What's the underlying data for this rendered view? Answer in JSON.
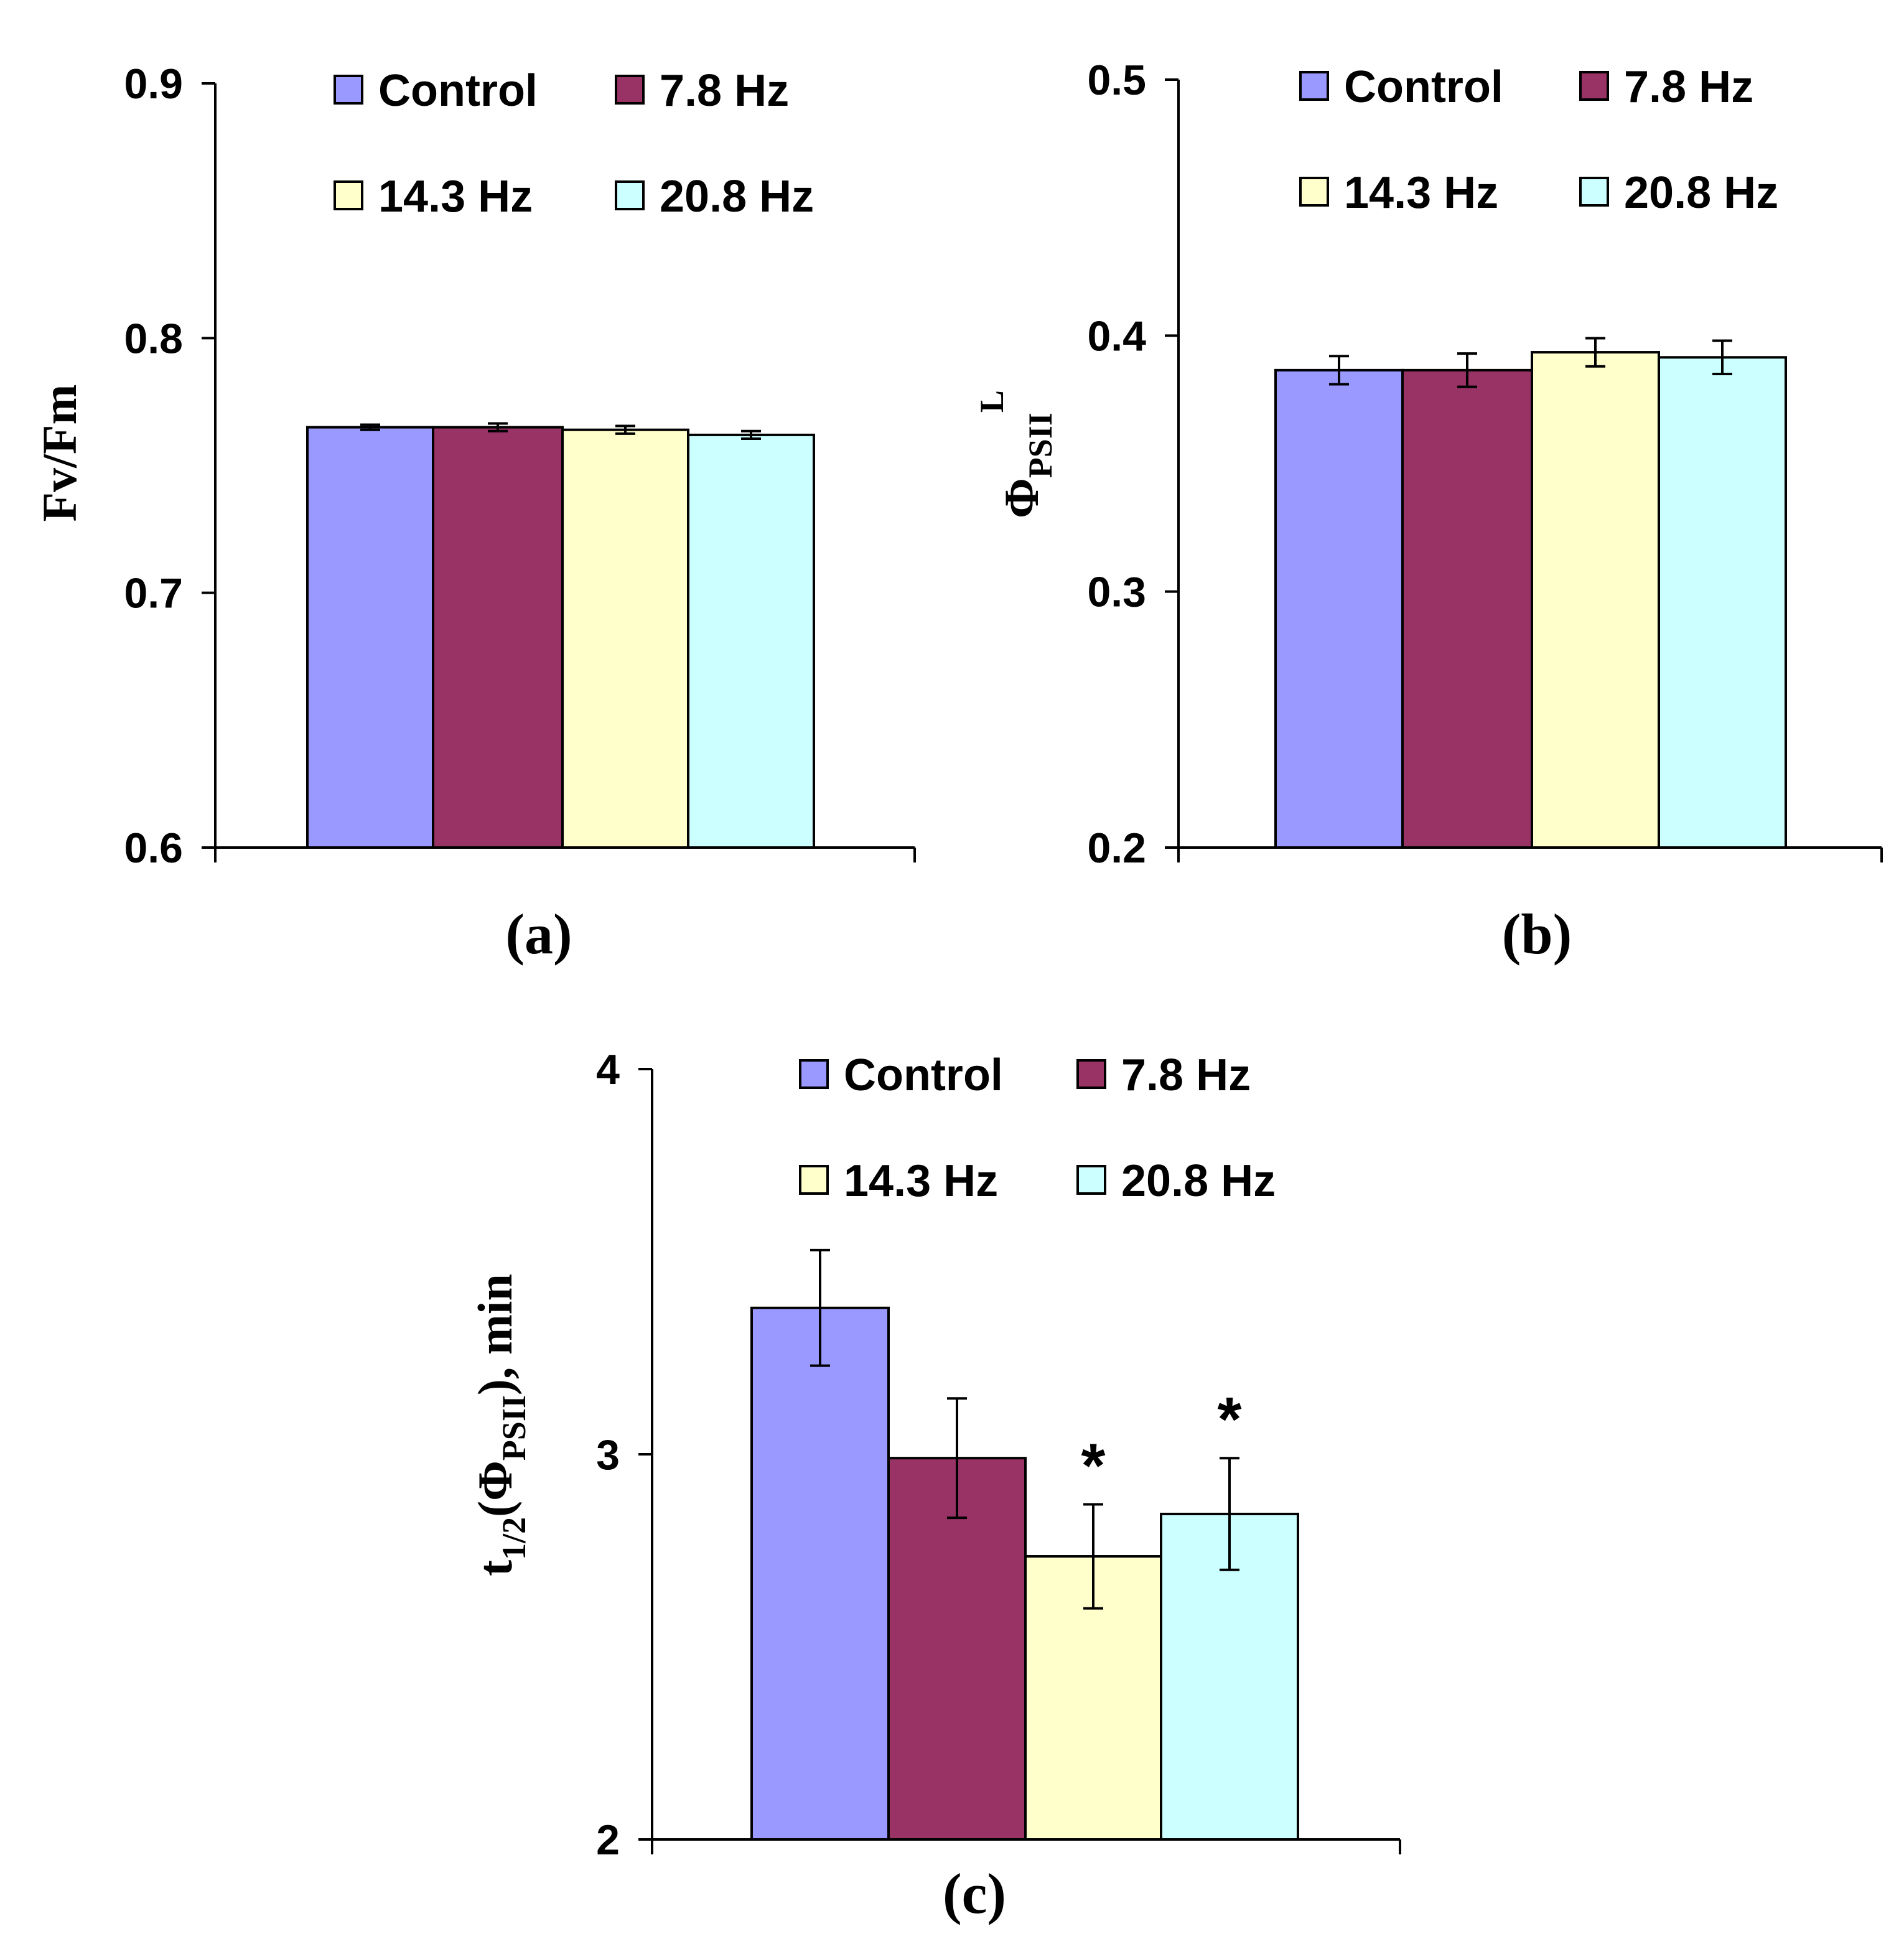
{
  "colors": {
    "Control": "#9999ff",
    "7.8 Hz": "#993366",
    "14.3 Hz": "#ffffcc",
    "20.8 Hz": "#ccffff"
  },
  "chart_data": [
    {
      "type": "bar",
      "panel_label": "(a)",
      "title": "",
      "xlabel": "",
      "ylabel": "Fv/Fm",
      "ylim": [
        0.6,
        0.9
      ],
      "yticks": [
        "0.6",
        "0.7",
        "0.8",
        "0.9"
      ],
      "legend": [
        "Control",
        "7.8 Hz",
        "14.3 Hz",
        "20.8 Hz"
      ],
      "legend_position": "top",
      "series": [
        {
          "name": "Control",
          "value": 0.765,
          "error": 0.001,
          "annotation": ""
        },
        {
          "name": "7.8 Hz",
          "value": 0.765,
          "error": 0.0015,
          "annotation": ""
        },
        {
          "name": "14.3 Hz",
          "value": 0.764,
          "error": 0.0015,
          "annotation": ""
        },
        {
          "name": "20.8 Hz",
          "value": 0.762,
          "error": 0.0015,
          "annotation": ""
        }
      ]
    },
    {
      "type": "bar",
      "panel_label": "(b)",
      "title": "",
      "xlabel": "",
      "ylabel": {
        "base": "Φ",
        "sub": "PSII",
        "sup": "L"
      },
      "ylim": [
        0.2,
        0.5
      ],
      "yticks": [
        "0.2",
        "0.3",
        "0.4",
        "0.5"
      ],
      "legend": [
        "Control",
        "7.8 Hz",
        "14.3 Hz",
        "20.8 Hz"
      ],
      "legend_position": "top",
      "series": [
        {
          "name": "Control",
          "value": 0.3865,
          "error": 0.0055,
          "annotation": ""
        },
        {
          "name": "7.8 Hz",
          "value": 0.3865,
          "error": 0.0065,
          "annotation": ""
        },
        {
          "name": "14.3 Hz",
          "value": 0.3935,
          "error": 0.0055,
          "annotation": ""
        },
        {
          "name": "20.8 Hz",
          "value": 0.3915,
          "error": 0.0065,
          "annotation": ""
        }
      ]
    },
    {
      "type": "bar",
      "panel_label": "(c)",
      "title": "",
      "xlabel": "",
      "ylabel": {
        "pre": "t",
        "sub1": "1/2",
        "mid": "(Φ",
        "sub2": "PSII",
        "post": "), min"
      },
      "ylim": [
        2,
        4
      ],
      "yticks": [
        "2",
        "3",
        "4"
      ],
      "legend": [
        "Control",
        "7.8 Hz",
        "14.3 Hz",
        "20.8 Hz"
      ],
      "legend_position": "top",
      "series": [
        {
          "name": "Control",
          "value": 3.38,
          "error": 0.15,
          "annotation": ""
        },
        {
          "name": "7.8 Hz",
          "value": 2.99,
          "error": 0.155,
          "annotation": ""
        },
        {
          "name": "14.3 Hz",
          "value": 2.735,
          "error": 0.135,
          "annotation": "*"
        },
        {
          "name": "20.8 Hz",
          "value": 2.845,
          "error": 0.145,
          "annotation": "*"
        }
      ]
    }
  ]
}
